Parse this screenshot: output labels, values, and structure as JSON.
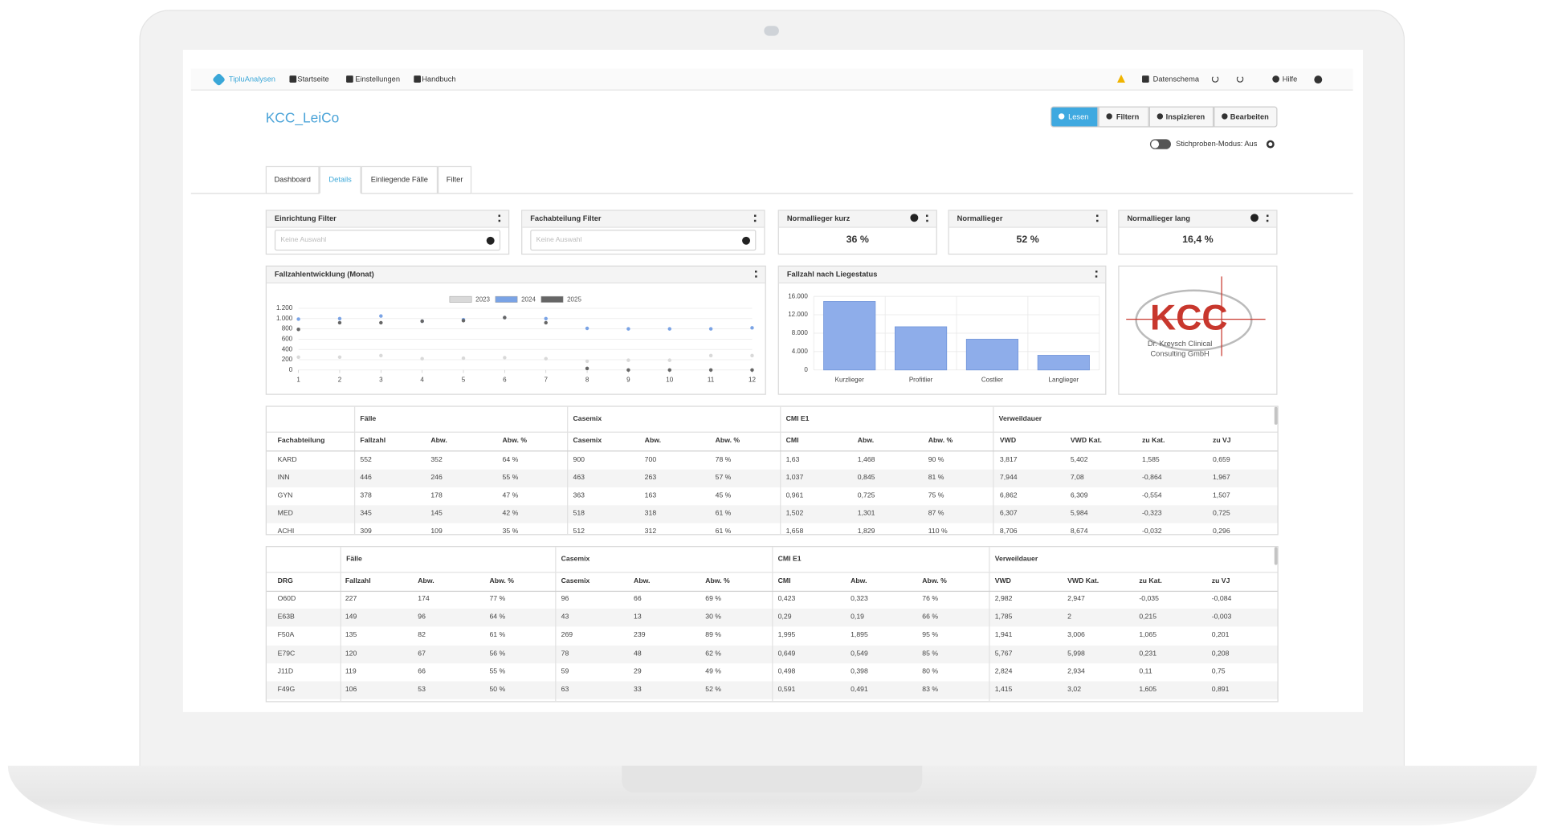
{
  "nav": {
    "brand": "TipluAnalysen",
    "items": [
      "Startseite",
      "Einstellungen",
      "Handbuch"
    ],
    "right": [
      "Datenschema",
      "Hilfe"
    ]
  },
  "header": {
    "title": "KCC_LeiCo",
    "buttons": [
      "Lesen",
      "Filtern",
      "Inspizieren",
      "Bearbeiten"
    ],
    "toggle": "Stichproben-Modus: Aus"
  },
  "tabs": [
    "Dashboard",
    "Details",
    "Einliegende Fälle",
    "Filter"
  ],
  "filters": [
    {
      "title": "Einrichtung Filter",
      "placeholder": "Keine Auswahl"
    },
    {
      "title": "Fachabteilung Filter",
      "placeholder": "Keine Auswahl"
    }
  ],
  "kpis": [
    {
      "title": "Normallieger kurz",
      "value": "36 %"
    },
    {
      "title": "Normallieger",
      "value": "52 %"
    },
    {
      "title": "Normallieger lang",
      "value": "16,4 %"
    }
  ],
  "logo": {
    "text": "KCC",
    "subtitle": [
      "Dr. Kreysch Clinical",
      "Consulting GmbH"
    ]
  },
  "chart_data": [
    {
      "type": "line",
      "title": "Fallzahlentwicklung (Monat)",
      "x": [
        1,
        2,
        3,
        4,
        5,
        6,
        7,
        8,
        9,
        10,
        11,
        12
      ],
      "xlim": [
        1,
        12
      ],
      "xticks": [
        1,
        2,
        3,
        4,
        5,
        6,
        7,
        8,
        9,
        10,
        11,
        12
      ],
      "ylim": [
        0,
        1200
      ],
      "yticks": [
        0,
        200,
        400,
        600,
        800,
        {
          "value": 1000,
          "label": "1.000"
        },
        {
          "value": 1200,
          "label": "1.200"
        }
      ],
      "grid": true,
      "series": [
        {
          "name": "2023",
          "color": "#d9d9d9",
          "values": [
            250,
            250,
            280,
            220,
            230,
            240,
            220,
            170,
            190,
            190,
            280,
            280
          ]
        },
        {
          "name": "2024",
          "color": "#7aa3e5",
          "values": [
            990,
            1000,
            1050,
            950,
            980,
            1020,
            1000,
            810,
            800,
            800,
            800,
            820
          ]
        },
        {
          "name": "2025",
          "color": "#666666",
          "values": [
            790,
            920,
            920,
            950,
            960,
            1020,
            920,
            30,
            0,
            0,
            0,
            0
          ]
        }
      ]
    },
    {
      "type": "bar",
      "title": "Fallzahl nach Liegestatus",
      "categories": [
        "Kurzlieger",
        "Profitlier",
        "Costlier",
        "Langlieger"
      ],
      "values": [
        14900,
        9400,
        6700,
        3200
      ],
      "color": "#8eadea",
      "ylim": [
        0,
        16000
      ],
      "yticks": [
        0,
        {
          "value": 4000,
          "label": "4.000"
        },
        {
          "value": 8000,
          "label": "8.000"
        },
        {
          "value": 12000,
          "label": "12.000"
        },
        {
          "value": 16000,
          "label": "16.000"
        }
      ],
      "grid": true
    }
  ],
  "tables": [
    {
      "groups": [
        "Fälle",
        "Casemix",
        "CMI E1",
        "Verweildauer"
      ],
      "columns": [
        "Fachabteilung",
        "Fallzahl",
        "Abw.",
        "Abw. %",
        "Casemix",
        "Abw.",
        "Abw. %",
        "CMI",
        "Abw.",
        "Abw. %",
        "VWD",
        "VWD Kat.",
        "zu Kat.",
        "zu VJ"
      ],
      "rows": [
        [
          "KARD",
          "552",
          "352",
          "64 %",
          "900",
          "700",
          "78 %",
          "1,63",
          "1,468",
          "90 %",
          "3,817",
          "5,402",
          "1,585",
          "0,659"
        ],
        [
          "INN",
          "446",
          "246",
          "55 %",
          "463",
          "263",
          "57 %",
          "1,037",
          "0,845",
          "81 %",
          "7,944",
          "7,08",
          "-0,864",
          "1,967"
        ],
        [
          "GYN",
          "378",
          "178",
          "47 %",
          "363",
          "163",
          "45 %",
          "0,961",
          "0,725",
          "75 %",
          "6,862",
          "6,309",
          "-0,554",
          "1,507"
        ],
        [
          "MED",
          "345",
          "145",
          "42 %",
          "518",
          "318",
          "61 %",
          "1,502",
          "1,301",
          "87 %",
          "6,307",
          "5,984",
          "-0,323",
          "0,725"
        ],
        [
          "ACHI",
          "309",
          "109",
          "35 %",
          "512",
          "312",
          "61 %",
          "1,658",
          "1,829",
          "110 %",
          "8,706",
          "8,674",
          "-0,032",
          "0,296"
        ]
      ]
    },
    {
      "groups": [
        "Fälle",
        "Casemix",
        "CMI E1",
        "Verweildauer"
      ],
      "columns": [
        "DRG",
        "Fallzahl",
        "Abw.",
        "Abw. %",
        "Casemix",
        "Abw.",
        "Abw. %",
        "CMI",
        "Abw.",
        "Abw. %",
        "VWD",
        "VWD Kat.",
        "zu Kat.",
        "zu VJ"
      ],
      "rows": [
        [
          "O60D",
          "227",
          "174",
          "77 %",
          "96",
          "66",
          "69 %",
          "0,423",
          "0,323",
          "76 %",
          "2,982",
          "2,947",
          "-0,035",
          "-0,084"
        ],
        [
          "E63B",
          "149",
          "96",
          "64 %",
          "43",
          "13",
          "30 %",
          "0,29",
          "0,19",
          "66 %",
          "1,785",
          "2",
          "0,215",
          "-0,003"
        ],
        [
          "F50A",
          "135",
          "82",
          "61 %",
          "269",
          "239",
          "89 %",
          "1,995",
          "1,895",
          "95 %",
          "1,941",
          "3,006",
          "1,065",
          "0,201"
        ],
        [
          "E79C",
          "120",
          "67",
          "56 %",
          "78",
          "48",
          "62 %",
          "0,649",
          "0,549",
          "85 %",
          "5,767",
          "5,998",
          "0,231",
          "0,208"
        ],
        [
          "J11D",
          "119",
          "66",
          "55 %",
          "59",
          "29",
          "49 %",
          "0,498",
          "0,398",
          "80 %",
          "2,824",
          "2,934",
          "0,11",
          "0,75"
        ],
        [
          "F49G",
          "106",
          "53",
          "50 %",
          "63",
          "33",
          "52 %",
          "0,591",
          "0,491",
          "83 %",
          "1,415",
          "3,02",
          "1,605",
          "0,891"
        ]
      ]
    }
  ]
}
